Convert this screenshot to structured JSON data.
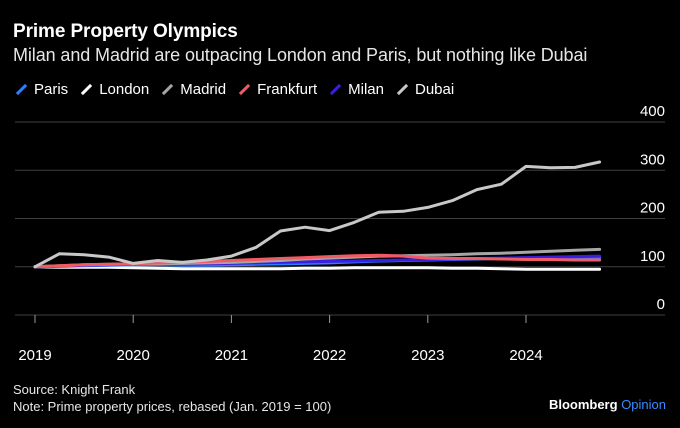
{
  "header": {
    "title": "Prime Property Olympics",
    "subtitle": "Milan and Madrid are outpacing London and Paris, but nothing like Dubai"
  },
  "footer": {
    "source": "Source: Knight Frank",
    "note": "Note: Prime property prices, rebased (Jan. 2019 = 100)",
    "brand_name": "Bloomberg",
    "brand_section": "Opinion"
  },
  "colors": {
    "background": "#000000",
    "grid": "#404040",
    "Paris": "#2d7fff",
    "London": "#ffffff",
    "Madrid": "#a6a6a6",
    "Frankfurt": "#f05a63",
    "Milan": "#3a1fe0",
    "Dubai": "#c8c8c8",
    "brand_accent": "#3b8bff"
  },
  "chart_data": {
    "type": "line",
    "title": "Prime Property Olympics",
    "subtitle": "Milan and Madrid are outpacing London and Paris, but nothing like Dubai",
    "x_tick_labels": [
      "2019",
      "2020",
      "2021",
      "2022",
      "2023",
      "2024"
    ],
    "y_tick_labels": [
      "0",
      "100",
      "200",
      "300",
      "400"
    ],
    "ylim": [
      0,
      400
    ],
    "xlim": [
      "2019-01",
      "2025-06"
    ],
    "grid": true,
    "y_axis_side": "right",
    "legend_position": "top-left",
    "x": [
      "2019-01",
      "2019-04",
      "2019-07",
      "2019-10",
      "2020-01",
      "2020-04",
      "2020-07",
      "2020-10",
      "2021-01",
      "2021-04",
      "2021-07",
      "2021-10",
      "2022-01",
      "2022-04",
      "2022-07",
      "2022-10",
      "2023-01",
      "2023-04",
      "2023-07",
      "2023-10",
      "2024-01",
      "2024-04",
      "2024-07",
      "2024-10"
    ],
    "series": [
      {
        "name": "Paris",
        "values": [
          100,
          101,
          102,
          103,
          104,
          104,
          103,
          103,
          104,
          105,
          106,
          107,
          108,
          110,
          112,
          113,
          114,
          115,
          116,
          117,
          117,
          118,
          118,
          119
        ]
      },
      {
        "name": "London",
        "values": [
          100,
          99,
          99,
          99,
          98,
          97,
          96,
          96,
          96,
          96,
          96,
          97,
          97,
          98,
          98,
          98,
          98,
          97,
          97,
          96,
          95,
          95,
          95,
          95
        ]
      },
      {
        "name": "Madrid",
        "values": [
          100,
          102,
          104,
          105,
          106,
          106,
          107,
          108,
          109,
          111,
          113,
          116,
          118,
          120,
          122,
          123,
          124,
          125,
          127,
          128,
          130,
          132,
          134,
          136
        ]
      },
      {
        "name": "Frankfurt",
        "values": [
          100,
          102,
          104,
          105,
          106,
          108,
          109,
          111,
          113,
          115,
          117,
          119,
          121,
          123,
          124,
          122,
          118,
          117,
          117,
          116,
          115,
          115,
          114,
          114
        ]
      },
      {
        "name": "Milan",
        "values": [
          100,
          101,
          103,
          104,
          105,
          105,
          105,
          106,
          107,
          108,
          109,
          110,
          111,
          112,
          113,
          114,
          115,
          116,
          117,
          118,
          119,
          120,
          121,
          122
        ]
      },
      {
        "name": "Dubai",
        "values": [
          100,
          127,
          125,
          120,
          107,
          113,
          109,
          114,
          122,
          140,
          174,
          182,
          175,
          192,
          213,
          215,
          223,
          237,
          260,
          271,
          308,
          305,
          306,
          317
        ]
      }
    ]
  }
}
